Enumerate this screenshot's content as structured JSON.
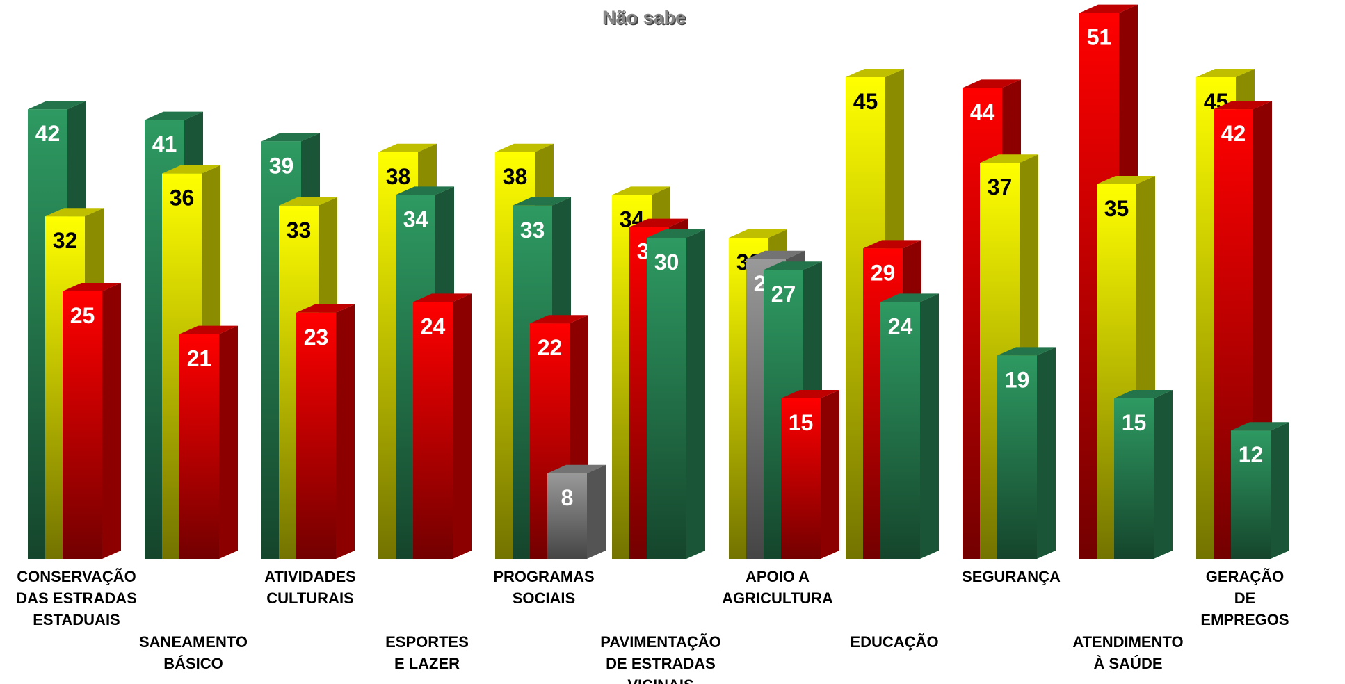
{
  "chart_data": {
    "type": "bar3d",
    "title": "Não sabe",
    "groups": [
      {
        "label": "CONSERVAÇÃO\nDAS ESTRADAS\nESTADUAIS",
        "bars": [
          {
            "value": 42,
            "color": "#2e9a62"
          },
          {
            "value": 32,
            "color": "#ffff00"
          },
          {
            "value": 25,
            "color": "#ff0000"
          }
        ]
      },
      {
        "label": "SANEAMENTO\nBÁSICO",
        "bars": [
          {
            "value": 41,
            "color": "#2e9a62"
          },
          {
            "value": 36,
            "color": "#ffff00"
          },
          {
            "value": 21,
            "color": "#ff0000"
          }
        ]
      },
      {
        "label": "ATIVIDADES\nCULTURAIS",
        "bars": [
          {
            "value": 39,
            "color": "#2e9a62"
          },
          {
            "value": 33,
            "color": "#ffff00"
          },
          {
            "value": 23,
            "color": "#ff0000"
          }
        ]
      },
      {
        "label": "ESPORTES\nE LAZER",
        "bars": [
          {
            "value": 38,
            "color": "#ffff00"
          },
          {
            "value": 34,
            "color": "#2e9a62"
          },
          {
            "value": 24,
            "color": "#ff0000"
          }
        ]
      },
      {
        "label": "PROGRAMAS\nSOCIAIS",
        "bars": [
          {
            "value": 38,
            "color": "#ffff00"
          },
          {
            "value": 33,
            "color": "#2e9a62"
          },
          {
            "value": 22,
            "color": "#ff0000"
          },
          {
            "value": 8,
            "color": "#999999"
          }
        ]
      },
      {
        "label": "PAVIMENTAÇÃO\nDE ESTRADAS\nVICINAIS",
        "bars": [
          {
            "value": 34,
            "color": "#ffff00"
          },
          {
            "value": 31,
            "color": "#ff0000"
          },
          {
            "value": 30,
            "color": "#2e9a62"
          }
        ]
      },
      {
        "label": "APOIO A\nAGRICULTURA",
        "bars": [
          {
            "value": 30,
            "color": "#ffff00"
          },
          {
            "value": 28,
            "color": "#999999"
          },
          {
            "value": 27,
            "color": "#2e9a62"
          },
          {
            "value": 15,
            "color": "#ff0000"
          }
        ]
      },
      {
        "label": "EDUCAÇÃO",
        "bars": [
          {
            "value": 45,
            "color": "#ffff00"
          },
          {
            "value": 29,
            "color": "#ff0000"
          },
          {
            "value": 24,
            "color": "#2e9a62"
          }
        ]
      },
      {
        "label": "SEGURANÇA",
        "bars": [
          {
            "value": 44,
            "color": "#ff0000"
          },
          {
            "value": 37,
            "color": "#ffff00"
          },
          {
            "value": 19,
            "color": "#2e9a62"
          }
        ]
      },
      {
        "label": "ATENDIMENTO\nÀ SAÚDE",
        "bars": [
          {
            "value": 51,
            "color": "#ff0000"
          },
          {
            "value": 35,
            "color": "#ffff00"
          },
          {
            "value": 15,
            "color": "#2e9a62"
          }
        ]
      },
      {
        "label": "GERAÇÃO\nDE EMPREGOS",
        "bars": [
          {
            "value": 45,
            "color": "#ffff00"
          },
          {
            "value": 42,
            "color": "#ff0000"
          },
          {
            "value": 12,
            "color": "#2e9a62"
          }
        ]
      }
    ]
  }
}
